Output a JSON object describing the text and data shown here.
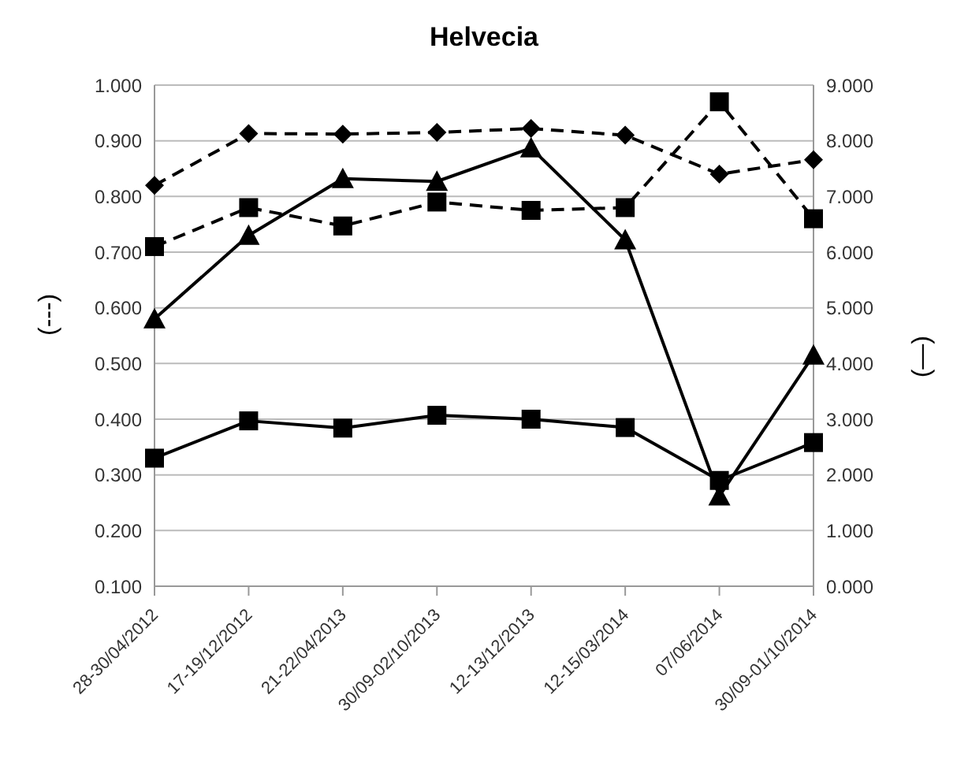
{
  "chart_data": {
    "type": "line",
    "title": "Helvecia",
    "ylabel": "(---)",
    "y2label": "(—)",
    "categories": [
      "28-30/04/2012",
      "17-19/12/2012",
      "21-22/04/2013",
      "30/09-02/10/2013",
      "12-13/12/2013",
      "12-15/03/2014",
      "07/06/2014",
      "30/09-01/10/2014"
    ],
    "series": [
      {
        "color": "#000000",
        "marker": "diamond",
        "line_style": "dashed",
        "values": [
          0.82,
          0.913,
          0.912,
          0.915,
          0.922,
          0.91,
          0.84,
          0.866
        ]
      },
      {
        "color": "#000000",
        "marker": "square",
        "line_style": "dashed",
        "values": [
          0.71,
          0.78,
          0.747,
          0.79,
          0.775,
          0.78,
          0.97,
          0.76
        ]
      },
      {
        "color": "#000000",
        "marker": "triangle",
        "line_style": "solid",
        "axis": "y2",
        "values": [
          4.8,
          6.3,
          7.32,
          7.27,
          7.87,
          6.22,
          1.62,
          4.15
        ]
      },
      {
        "color": "#000000",
        "marker": "square",
        "line_style": "solid",
        "axis": "y2",
        "values": [
          2.3,
          2.97,
          2.84,
          3.07,
          3.0,
          2.85,
          1.9,
          2.58
        ]
      }
    ],
    "ylim": [
      0.1,
      1.0
    ],
    "yticks": [
      {
        "value": 0.1,
        "label": "0.100"
      },
      {
        "value": 0.2,
        "label": "0.200"
      },
      {
        "value": 0.3,
        "label": "0.300"
      },
      {
        "value": 0.4,
        "label": "0.400"
      },
      {
        "value": 0.5,
        "label": "0.500"
      },
      {
        "value": 0.6,
        "label": "0.600"
      },
      {
        "value": 0.7,
        "label": "0.700"
      },
      {
        "value": 0.8,
        "label": "0.800"
      },
      {
        "value": 0.9,
        "label": "0.900"
      },
      {
        "value": 1.0,
        "label": "1.000"
      }
    ],
    "y2lim": [
      0,
      9
    ],
    "y2ticks": [
      {
        "value": 0,
        "label": "0.000"
      },
      {
        "value": 1,
        "label": "1.000"
      },
      {
        "value": 2,
        "label": "2.000"
      },
      {
        "value": 3,
        "label": "3.000"
      },
      {
        "value": 4,
        "label": "4.000"
      },
      {
        "value": 5,
        "label": "5.000"
      },
      {
        "value": 6,
        "label": "6.000"
      },
      {
        "value": 7,
        "label": "7.000"
      },
      {
        "value": 8,
        "label": "8.000"
      },
      {
        "value": 9,
        "label": "9.000"
      }
    ],
    "grid": "y"
  }
}
